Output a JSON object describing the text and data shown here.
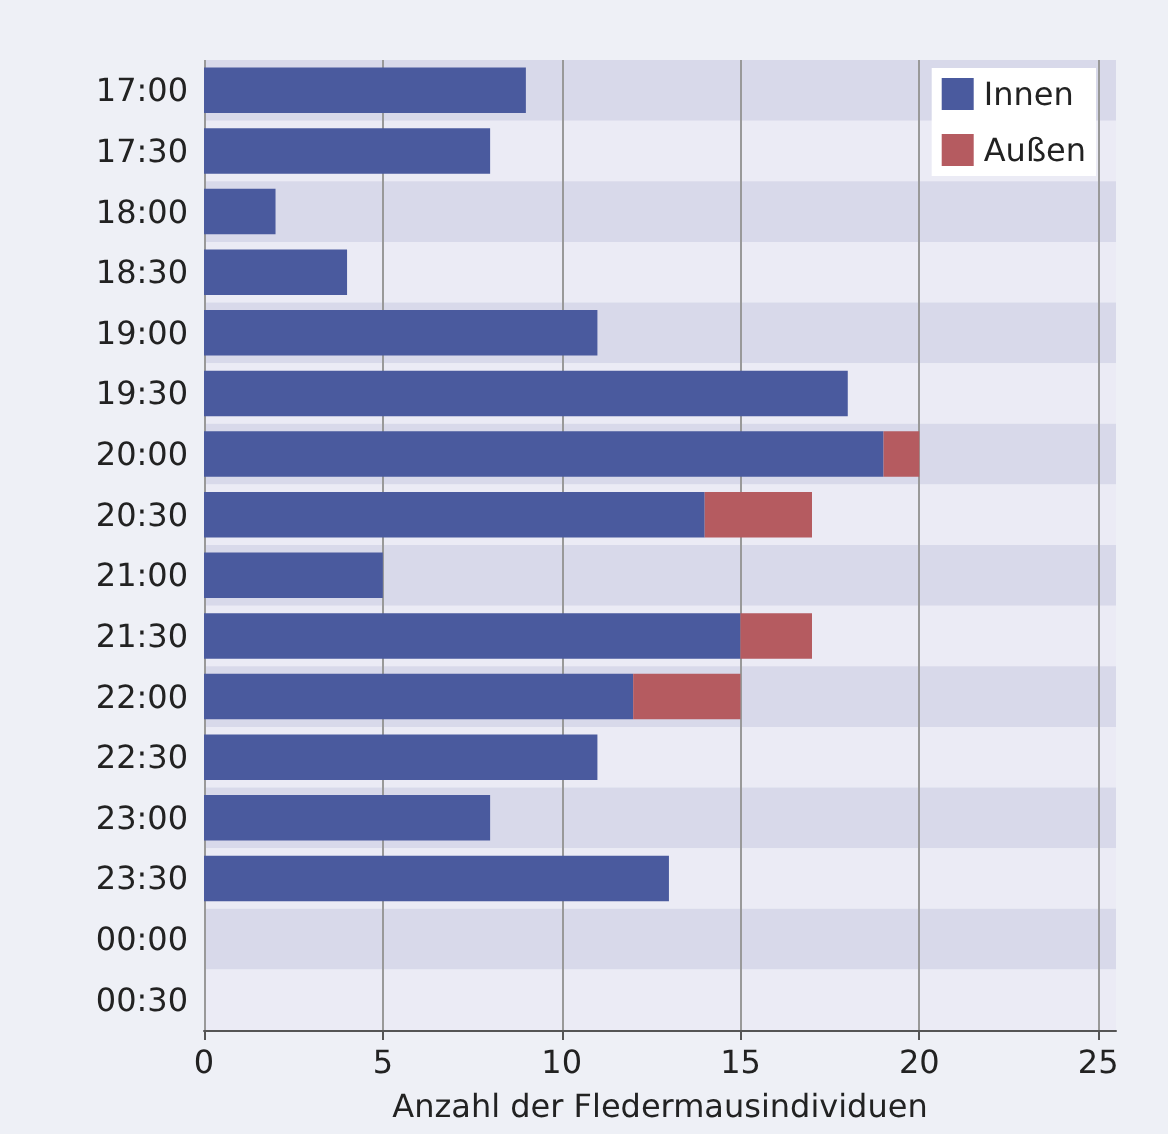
{
  "chart_data": {
    "type": "bar",
    "orientation": "horizontal",
    "stacked": true,
    "categories": [
      "17:00",
      "17:30",
      "18:00",
      "18:30",
      "19:00",
      "19:30",
      "20:00",
      "20:30",
      "21:00",
      "21:30",
      "22:00",
      "22:30",
      "23:00",
      "23:30",
      "00:00",
      "00:30"
    ],
    "series": [
      {
        "name": "Innen",
        "color": "#4a5a9e",
        "values": [
          9,
          8,
          2,
          4,
          11,
          18,
          19,
          14,
          5,
          15,
          12,
          11,
          8,
          13,
          0,
          0
        ]
      },
      {
        "name": "Außen",
        "color": "#b55b60",
        "values": [
          0,
          0,
          0,
          0,
          0,
          0,
          1,
          3,
          0,
          2,
          3,
          0,
          0,
          0,
          0,
          0
        ]
      }
    ],
    "xlabel": "Anzahl der Fledermausindividuen",
    "xlim": [
      0,
      25.5
    ],
    "xticks": [
      0,
      5,
      10,
      15,
      20,
      25
    ],
    "grid": "x",
    "legend": "top right"
  }
}
